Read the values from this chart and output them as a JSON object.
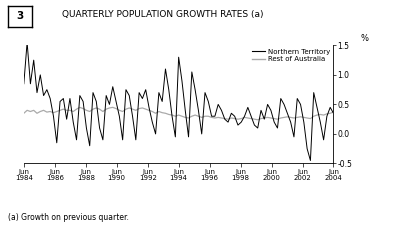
{
  "title": "QUARTERLY POPULATION GROWTH RATES (a)",
  "title_box_num": "3",
  "ylabel": "%",
  "footnote": "(a) Growth on previous quarter.",
  "ylim": [
    -0.5,
    1.5
  ],
  "yticks": [
    -0.5,
    0.0,
    0.5,
    1.0,
    1.5
  ],
  "ytick_labels": [
    "-0.5",
    "0.0",
    "0.5",
    "1.0",
    "1.5"
  ],
  "legend_labels": [
    "Northern Territory",
    "Rest of Australia"
  ],
  "nt_color": "#000000",
  "roa_color": "#aaaaaa",
  "xtick_labels": [
    "Jun\n1984",
    "Jun\n1986",
    "Jun\n1988",
    "Jun\n1990",
    "Jun\n1992",
    "Jun\n1994",
    "Jun\n1996",
    "Jun\n1998",
    "Jun\n2000",
    "Jun\n2002",
    "Jun\n2004"
  ],
  "nt_data": [
    0.85,
    1.55,
    0.85,
    1.25,
    0.7,
    1.0,
    0.65,
    0.75,
    0.6,
    0.3,
    -0.15,
    0.55,
    0.6,
    0.25,
    0.6,
    0.2,
    -0.1,
    0.65,
    0.55,
    0.1,
    -0.2,
    0.7,
    0.55,
    0.1,
    -0.1,
    0.65,
    0.5,
    0.8,
    0.55,
    0.3,
    -0.1,
    0.75,
    0.65,
    0.3,
    -0.1,
    0.7,
    0.6,
    0.75,
    0.45,
    0.2,
    0.0,
    0.7,
    0.55,
    1.1,
    0.75,
    0.3,
    -0.05,
    1.3,
    0.9,
    0.4,
    -0.05,
    1.05,
    0.75,
    0.4,
    0.0,
    0.7,
    0.55,
    0.3,
    0.3,
    0.5,
    0.4,
    0.25,
    0.2,
    0.35,
    0.3,
    0.15,
    0.2,
    0.3,
    0.45,
    0.3,
    0.15,
    0.1,
    0.4,
    0.25,
    0.5,
    0.4,
    0.2,
    0.1,
    0.6,
    0.5,
    0.35,
    0.2,
    -0.05,
    0.6,
    0.5,
    0.2,
    -0.25,
    -0.45,
    0.7,
    0.45,
    0.2,
    -0.1,
    0.3,
    0.45,
    0.35
  ],
  "roa_data": [
    0.35,
    0.4,
    0.38,
    0.4,
    0.35,
    0.38,
    0.4,
    0.37,
    0.38,
    0.36,
    0.38,
    0.4,
    0.42,
    0.4,
    0.4,
    0.38,
    0.42,
    0.45,
    0.43,
    0.4,
    0.38,
    0.42,
    0.44,
    0.42,
    0.38,
    0.42,
    0.44,
    0.45,
    0.43,
    0.4,
    0.38,
    0.42,
    0.44,
    0.42,
    0.4,
    0.43,
    0.44,
    0.42,
    0.4,
    0.38,
    0.35,
    0.38,
    0.36,
    0.35,
    0.33,
    0.32,
    0.3,
    0.32,
    0.3,
    0.28,
    0.27,
    0.3,
    0.32,
    0.3,
    0.28,
    0.3,
    0.3,
    0.28,
    0.27,
    0.28,
    0.27,
    0.26,
    0.25,
    0.27,
    0.26,
    0.25,
    0.26,
    0.28,
    0.27,
    0.26,
    0.25,
    0.24,
    0.26,
    0.27,
    0.28,
    0.27,
    0.26,
    0.25,
    0.27,
    0.28,
    0.29,
    0.28,
    0.27,
    0.28,
    0.29,
    0.28,
    0.27,
    0.26,
    0.3,
    0.32,
    0.33,
    0.32,
    0.34,
    0.35,
    0.37
  ]
}
